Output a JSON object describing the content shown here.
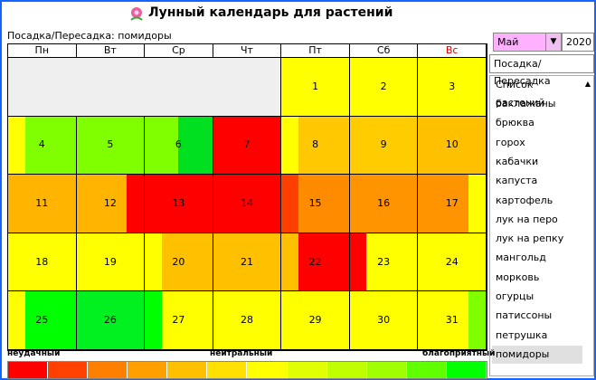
{
  "header": {
    "title": "Лунный календарь для растений"
  },
  "subtitle": "Посадка/Пересадка: помидоры",
  "calendar": {
    "weekdays": [
      "Пн",
      "Вт",
      "Ср",
      "Чт",
      "Пт",
      "Сб",
      "Вс"
    ],
    "days": [
      {
        "label": "1",
        "colors": [
          "#ffff00"
        ]
      },
      {
        "label": "2",
        "colors": [
          "#ffff00"
        ]
      },
      {
        "label": "3",
        "colors": [
          "#ffff00"
        ]
      },
      {
        "label": "4",
        "colors": [
          "#ffff00",
          "#80ff00",
          "#80ff00",
          "#80ff00"
        ]
      },
      {
        "label": "5",
        "colors": [
          "#80ff00"
        ]
      },
      {
        "label": "6",
        "colors": [
          "#80ff00",
          "#00e020"
        ]
      },
      {
        "label": "7",
        "colors": [
          "#ff0000"
        ]
      },
      {
        "label": "8",
        "colors": [
          "#ffff00",
          "#ffc800",
          "#ffc800",
          "#ffc800"
        ]
      },
      {
        "label": "9",
        "colors": [
          "#ffcc00"
        ]
      },
      {
        "label": "10",
        "colors": [
          "#ffc000"
        ]
      },
      {
        "label": "11",
        "colors": [
          "#ffb400"
        ]
      },
      {
        "label": "12",
        "colors": [
          "#ffb400",
          "#ffb400",
          "#ffb400",
          "#ff0000"
        ]
      },
      {
        "label": "13",
        "colors": [
          "#ff0000"
        ]
      },
      {
        "label": "14",
        "colors": [
          "#ff0000"
        ]
      },
      {
        "label": "15",
        "colors": [
          "#ff4000",
          "#ff8c00",
          "#ff8c00",
          "#ff8c00"
        ]
      },
      {
        "label": "16",
        "colors": [
          "#ff9400"
        ]
      },
      {
        "label": "17",
        "colors": [
          "#ff9400",
          "#ff9400",
          "#ff9400",
          "#ffff00"
        ]
      },
      {
        "label": "18",
        "colors": [
          "#ffff00"
        ]
      },
      {
        "label": "19",
        "colors": [
          "#ffff00"
        ]
      },
      {
        "label": "20",
        "colors": [
          "#ffff00",
          "#ffc000",
          "#ffc000",
          "#ffc000"
        ]
      },
      {
        "label": "21",
        "colors": [
          "#ffc000"
        ]
      },
      {
        "label": "22",
        "colors": [
          "#ffc000",
          "#ff0000",
          "#ff0000",
          "#ff0000"
        ]
      },
      {
        "label": "23",
        "colors": [
          "#ff0000",
          "#ffff00",
          "#ffff00",
          "#ffff00"
        ]
      },
      {
        "label": "24",
        "colors": [
          "#ffff00"
        ]
      },
      {
        "label": "25",
        "colors": [
          "#ffff00",
          "#00ff00",
          "#00ff00",
          "#00ff00"
        ]
      },
      {
        "label": "26",
        "colors": [
          "#00f020"
        ]
      },
      {
        "label": "27",
        "colors": [
          "#00ff00",
          "#ffff00",
          "#ffff00",
          "#ffff00"
        ]
      },
      {
        "label": "28",
        "colors": [
          "#ffff00"
        ]
      },
      {
        "label": "29",
        "colors": [
          "#ffff00"
        ]
      },
      {
        "label": "30",
        "colors": [
          "#ffff00"
        ]
      },
      {
        "label": "31",
        "colors": [
          "#ffff00",
          "#ffff00",
          "#ffff00",
          "#80ff00"
        ]
      }
    ]
  },
  "controls": {
    "month": "Май",
    "year": "2020",
    "mode": "Посадка/Пересадка"
  },
  "plants": {
    "title": "Список растений",
    "items": [
      "баклажаны",
      "брюква",
      "горох",
      "кабачки",
      "капуста",
      "картофель",
      "лук на перо",
      "лук на репку",
      "мангольд",
      "морковь",
      "огурцы",
      "патиссоны",
      "петрушка",
      "помидоры"
    ]
  },
  "legend": {
    "labels": [
      "неудачный",
      "нейтральный",
      "благоприятный"
    ],
    "colors": [
      "#ff0000",
      "#ff4000",
      "#ff8000",
      "#ffa000",
      "#ffc000",
      "#ffe000",
      "#ffff00",
      "#e0ff00",
      "#c0ff00",
      "#a0ff00",
      "#60ff00",
      "#00ff00"
    ]
  }
}
